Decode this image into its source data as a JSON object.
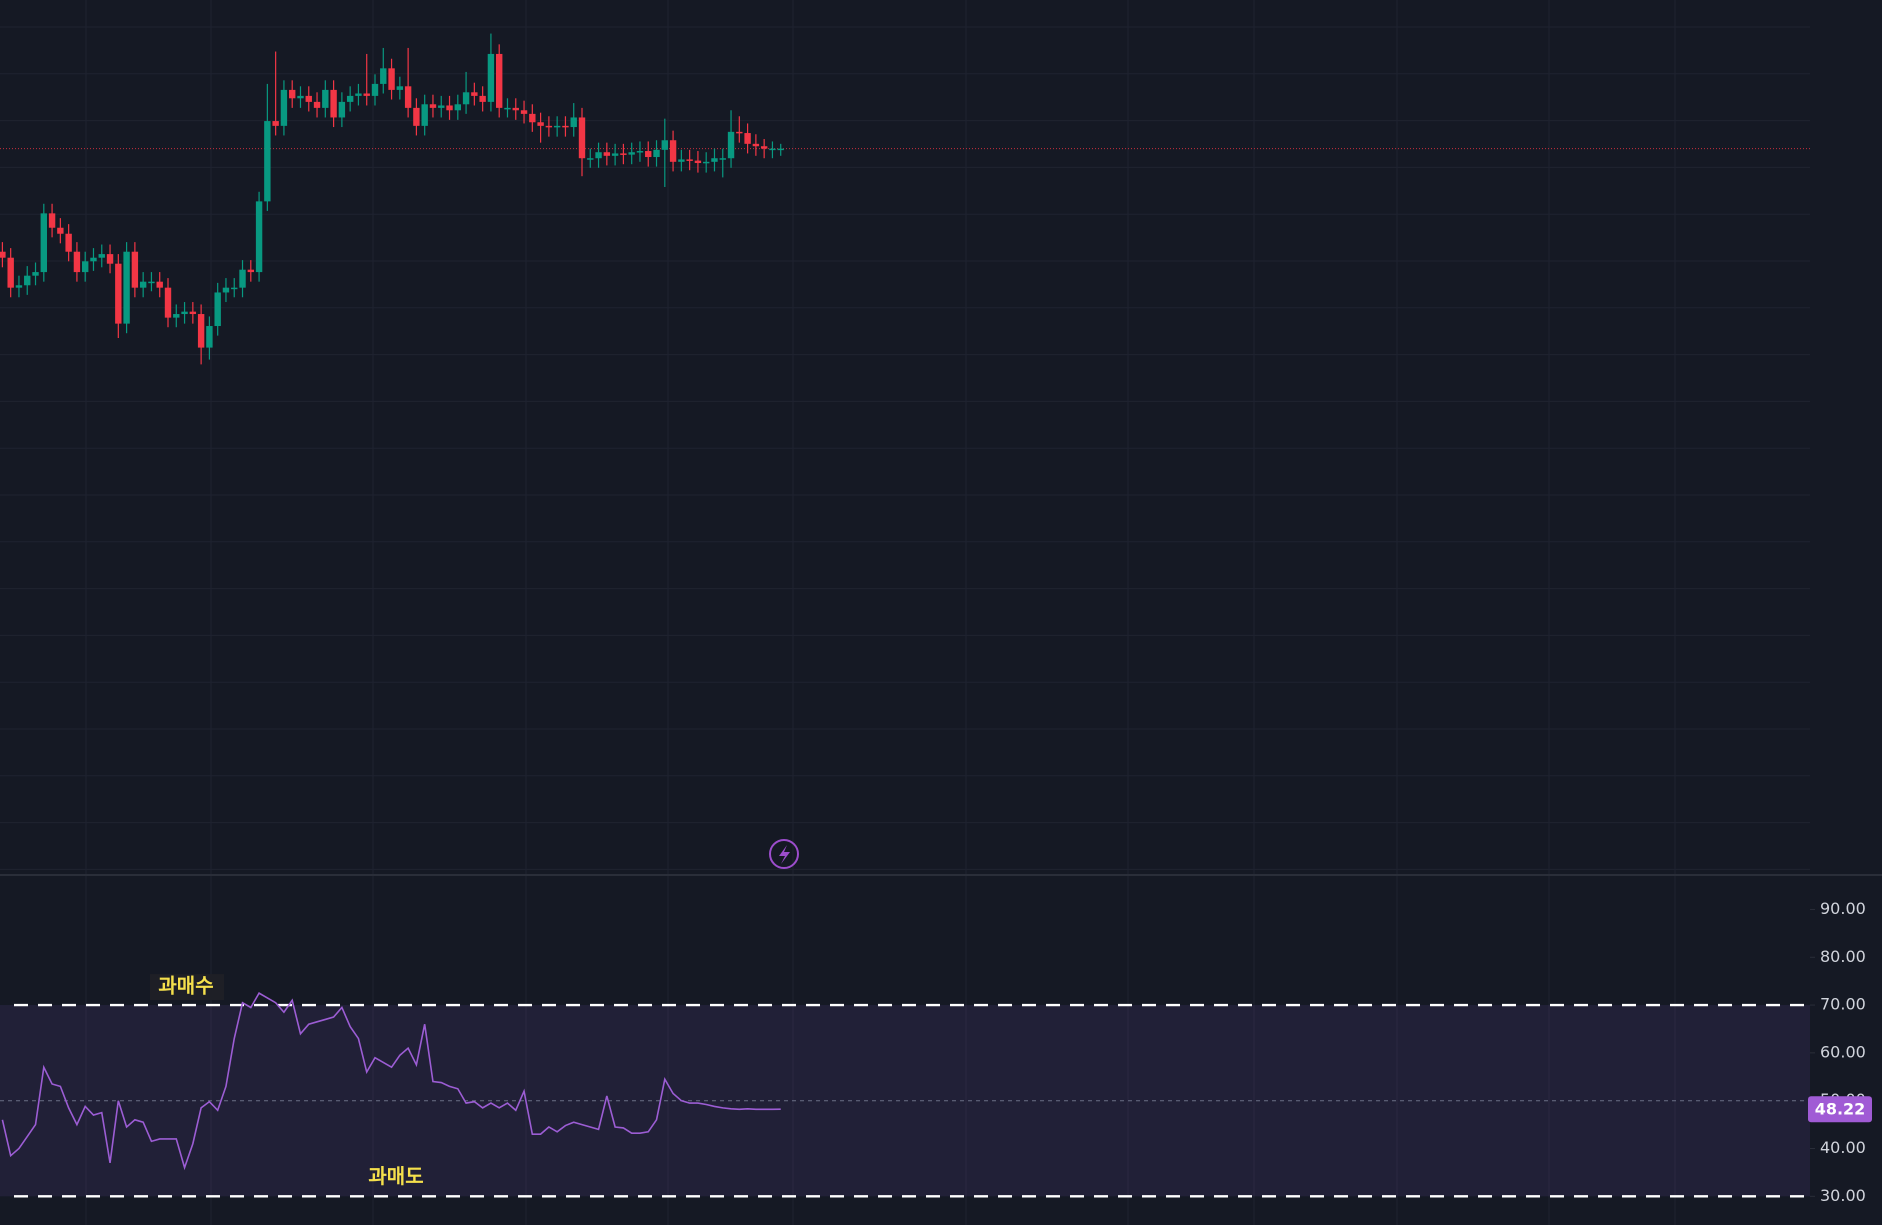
{
  "chart_data": [
    {
      "type": "candlestick",
      "up_color": "#089981",
      "down_color": "#f23645",
      "ylim": [
        0,
        73
      ],
      "open": [
        52.0,
        51.5,
        49.0,
        49.2,
        50.0,
        50.3,
        55.2,
        54.0,
        53.5,
        52.0,
        50.3,
        51.2,
        51.5,
        51.8,
        51.0,
        46.0,
        52.0,
        49.0,
        49.5,
        49.5,
        49.0,
        46.5,
        46.8,
        47.0,
        46.8,
        44.0,
        45.8,
        48.6,
        49.0,
        49.0,
        50.5,
        50.3,
        56.2,
        62.9,
        62.5,
        65.5,
        64.8,
        65.0,
        64.5,
        64.0,
        65.5,
        63.2,
        64.5,
        65.0,
        65.2,
        65.0,
        66.0,
        67.3,
        65.5,
        65.8,
        64.0,
        62.5,
        64.3,
        64.0,
        64.2,
        63.8,
        64.3,
        65.3,
        65.0,
        64.5,
        68.5,
        64.0,
        64.0,
        63.8,
        63.5,
        62.8,
        62.5,
        62.4,
        62.5,
        62.4,
        63.2,
        59.8,
        59.8,
        60.3,
        60.0,
        60.2,
        60.1,
        60.3,
        60.4,
        59.9,
        60.5,
        61.3,
        59.5,
        59.7,
        59.6,
        59.4,
        59.5,
        59.8,
        59.8,
        62.0,
        61.9,
        61.0,
        60.8,
        60.6,
        60.6
      ],
      "high": [
        52.8,
        52.3,
        50.0,
        50.8,
        51.1,
        56.0,
        56.0,
        54.8,
        54.3,
        52.8,
        52.0,
        52.3,
        52.6,
        52.6,
        51.8,
        52.8,
        52.8,
        50.3,
        50.3,
        50.3,
        49.8,
        47.6,
        47.8,
        47.8,
        47.6,
        46.6,
        49.4,
        49.8,
        49.8,
        51.3,
        51.3,
        57.0,
        66.0,
        68.7,
        66.3,
        66.3,
        65.8,
        65.8,
        65.3,
        66.3,
        66.3,
        65.3,
        65.8,
        66.0,
        68.5,
        66.8,
        69.0,
        68.1,
        66.6,
        69.0,
        64.8,
        65.1,
        65.1,
        65.0,
        65.0,
        65.1,
        67.0,
        66.1,
        65.8,
        70.2,
        69.3,
        64.8,
        64.8,
        64.6,
        64.3,
        63.6,
        63.3,
        63.3,
        63.3,
        64.4,
        64.0,
        60.6,
        61.1,
        61.1,
        61.0,
        61.0,
        61.1,
        61.2,
        61.2,
        61.3,
        63.1,
        62.1,
        60.5,
        60.5,
        60.4,
        60.3,
        60.6,
        60.6,
        63.8,
        63.3,
        62.7,
        61.8,
        61.4,
        61.2,
        61.0
      ],
      "low": [
        50.7,
        48.2,
        48.2,
        48.4,
        49.2,
        49.5,
        53.2,
        52.7,
        51.2,
        49.5,
        49.5,
        50.4,
        50.7,
        50.2,
        44.8,
        45.2,
        48.2,
        48.2,
        48.7,
        48.2,
        45.7,
        45.7,
        46.0,
        46.0,
        42.6,
        43.0,
        45.0,
        47.8,
        48.2,
        48.2,
        49.5,
        49.5,
        55.4,
        61.7,
        61.7,
        64.0,
        64.0,
        63.7,
        63.2,
        63.2,
        62.4,
        62.4,
        63.7,
        64.2,
        64.2,
        64.2,
        65.2,
        64.7,
        64.7,
        63.2,
        61.7,
        61.7,
        63.2,
        63.2,
        63.0,
        63.0,
        63.5,
        64.2,
        63.7,
        63.7,
        63.2,
        63.2,
        63.0,
        62.7,
        62.0,
        61.1,
        61.6,
        61.6,
        61.6,
        61.6,
        58.3,
        59.0,
        59.0,
        59.2,
        59.2,
        59.3,
        59.3,
        59.5,
        59.1,
        59.1,
        57.4,
        58.7,
        58.7,
        58.8,
        58.6,
        58.6,
        58.7,
        58.2,
        59.0,
        61.1,
        60.2,
        60.0,
        59.8,
        59.8,
        60.0
      ],
      "close": [
        51.5,
        49.0,
        49.2,
        50.0,
        50.3,
        55.2,
        54.0,
        53.5,
        52.0,
        50.3,
        51.2,
        51.5,
        51.8,
        51.0,
        46.0,
        52.0,
        49.0,
        49.5,
        49.5,
        49.0,
        46.5,
        46.8,
        47.0,
        46.8,
        44.0,
        45.8,
        48.6,
        49.0,
        49.0,
        50.5,
        50.3,
        56.2,
        62.9,
        62.5,
        65.5,
        64.8,
        65.0,
        64.5,
        64.0,
        65.5,
        63.2,
        64.5,
        65.0,
        65.2,
        65.0,
        66.0,
        67.3,
        65.5,
        65.8,
        64.0,
        62.5,
        64.3,
        64.0,
        64.2,
        63.8,
        64.3,
        65.3,
        65.0,
        64.5,
        68.5,
        64.0,
        64.0,
        63.8,
        63.5,
        62.8,
        62.5,
        62.4,
        62.5,
        62.4,
        63.2,
        59.8,
        59.8,
        60.3,
        60.0,
        60.2,
        60.1,
        60.3,
        60.4,
        59.9,
        60.5,
        61.3,
        59.5,
        59.7,
        59.6,
        59.4,
        59.5,
        59.8,
        59.8,
        62.0,
        61.9,
        61.0,
        60.8,
        60.6,
        60.6,
        60.6
      ]
    },
    {
      "type": "line",
      "color": "#9c5dd4",
      "ylim": [
        24,
        97
      ],
      "yticks": [
        {
          "value": 30,
          "label": "30.00"
        },
        {
          "value": 40,
          "label": "40.00"
        },
        {
          "value": 50,
          "label": "50.00"
        },
        {
          "value": 60,
          "label": "60.00"
        },
        {
          "value": 70,
          "label": "70.00"
        },
        {
          "value": 80,
          "label": "80.00"
        },
        {
          "value": 90,
          "label": "90.00"
        }
      ],
      "overbought": 70,
      "oversold": 30,
      "midline": 50,
      "overbought_label": "과매수",
      "oversold_label": "과매도",
      "values": [
        46,
        38.5,
        40,
        42.5,
        45,
        57,
        53.5,
        53,
        48.5,
        45,
        48.8,
        47,
        47.5,
        37,
        50,
        44.5,
        46,
        45.5,
        41.5,
        42,
        42,
        42,
        36,
        41,
        48.5,
        49.8,
        48,
        53,
        63,
        70.5,
        69.5,
        72.5,
        71.5,
        70.5,
        68.5,
        71,
        64,
        66,
        66.5,
        67,
        67.5,
        69.5,
        65.5,
        63,
        56,
        59,
        58,
        57,
        59.5,
        61,
        57.5,
        66,
        54,
        53.8,
        53,
        52.5,
        49.5,
        49.8,
        48.5,
        49.5,
        48.5,
        49.5,
        48,
        52,
        43,
        43,
        44.5,
        43.5,
        44.8,
        45.5,
        45,
        44.5,
        44,
        51,
        44.5,
        44.3,
        43.2,
        43.2,
        43.5,
        46,
        54.5,
        51.5,
        50,
        49.5,
        49.5,
        49.2,
        48.8,
        48.5,
        48.3,
        48.2,
        48.3,
        48.2,
        48.2,
        48.2,
        48.22
      ]
    }
  ]
}
